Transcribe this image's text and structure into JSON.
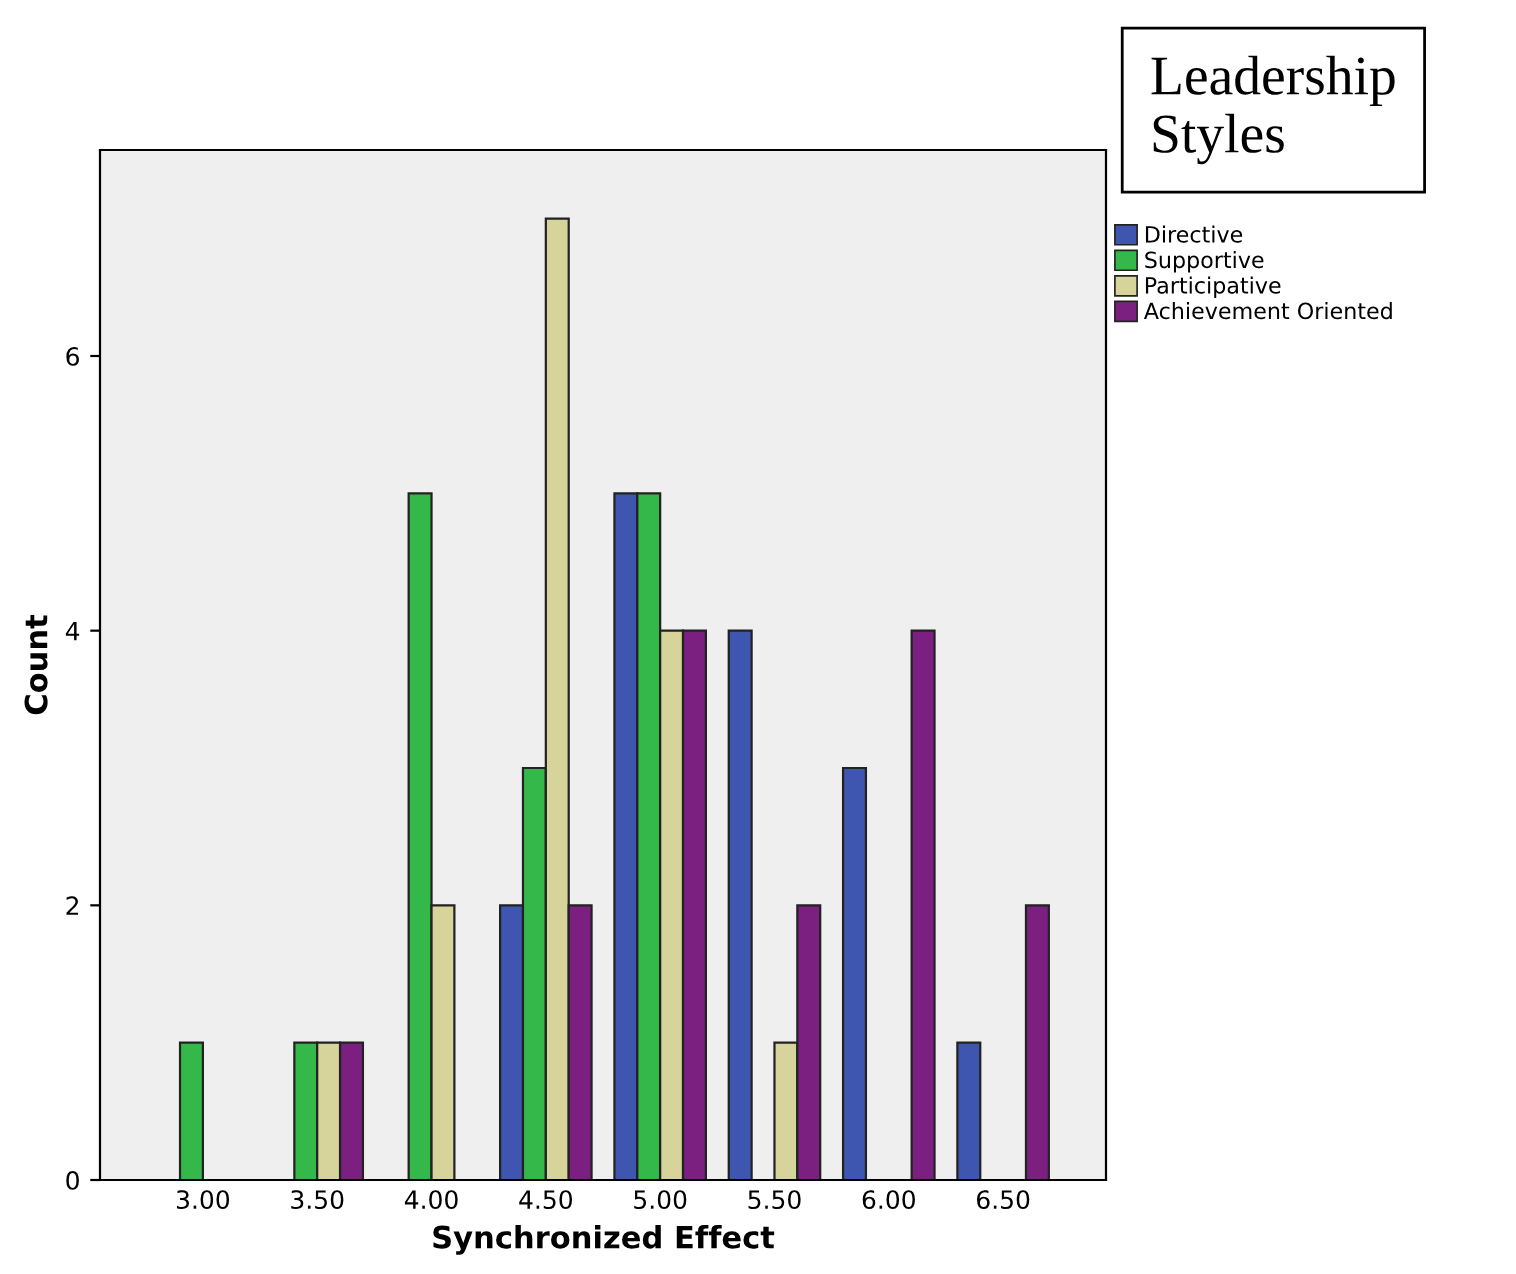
{
  "chart_data": {
    "type": "bar",
    "xlabel": "Synchronized Effect",
    "ylabel": "Count",
    "legend_title": "Leadership Styles",
    "categories": [
      "3.00",
      "3.50",
      "4.00",
      "4.50",
      "5.00",
      "5.50",
      "6.00",
      "6.50"
    ],
    "series": [
      {
        "name": "Directive",
        "color": "#3f56b0",
        "values": [
          0,
          0,
          0,
          2,
          5,
          4,
          3,
          1
        ]
      },
      {
        "name": "Supportive",
        "color": "#35b84a",
        "values": [
          1,
          1,
          5,
          3,
          5,
          0,
          0,
          0
        ]
      },
      {
        "name": "Participative",
        "color": "#d6d49a",
        "values": [
          0,
          1,
          2,
          7,
          4,
          1,
          0,
          0
        ]
      },
      {
        "name": "Achievement Oriented",
        "color": "#7b2080",
        "values": [
          0,
          1,
          0,
          2,
          4,
          2,
          4,
          2
        ]
      }
    ],
    "ylim": [
      0,
      7.5
    ],
    "yticks": [
      0,
      2,
      4,
      6
    ],
    "grid": false,
    "legend": "top right"
  }
}
